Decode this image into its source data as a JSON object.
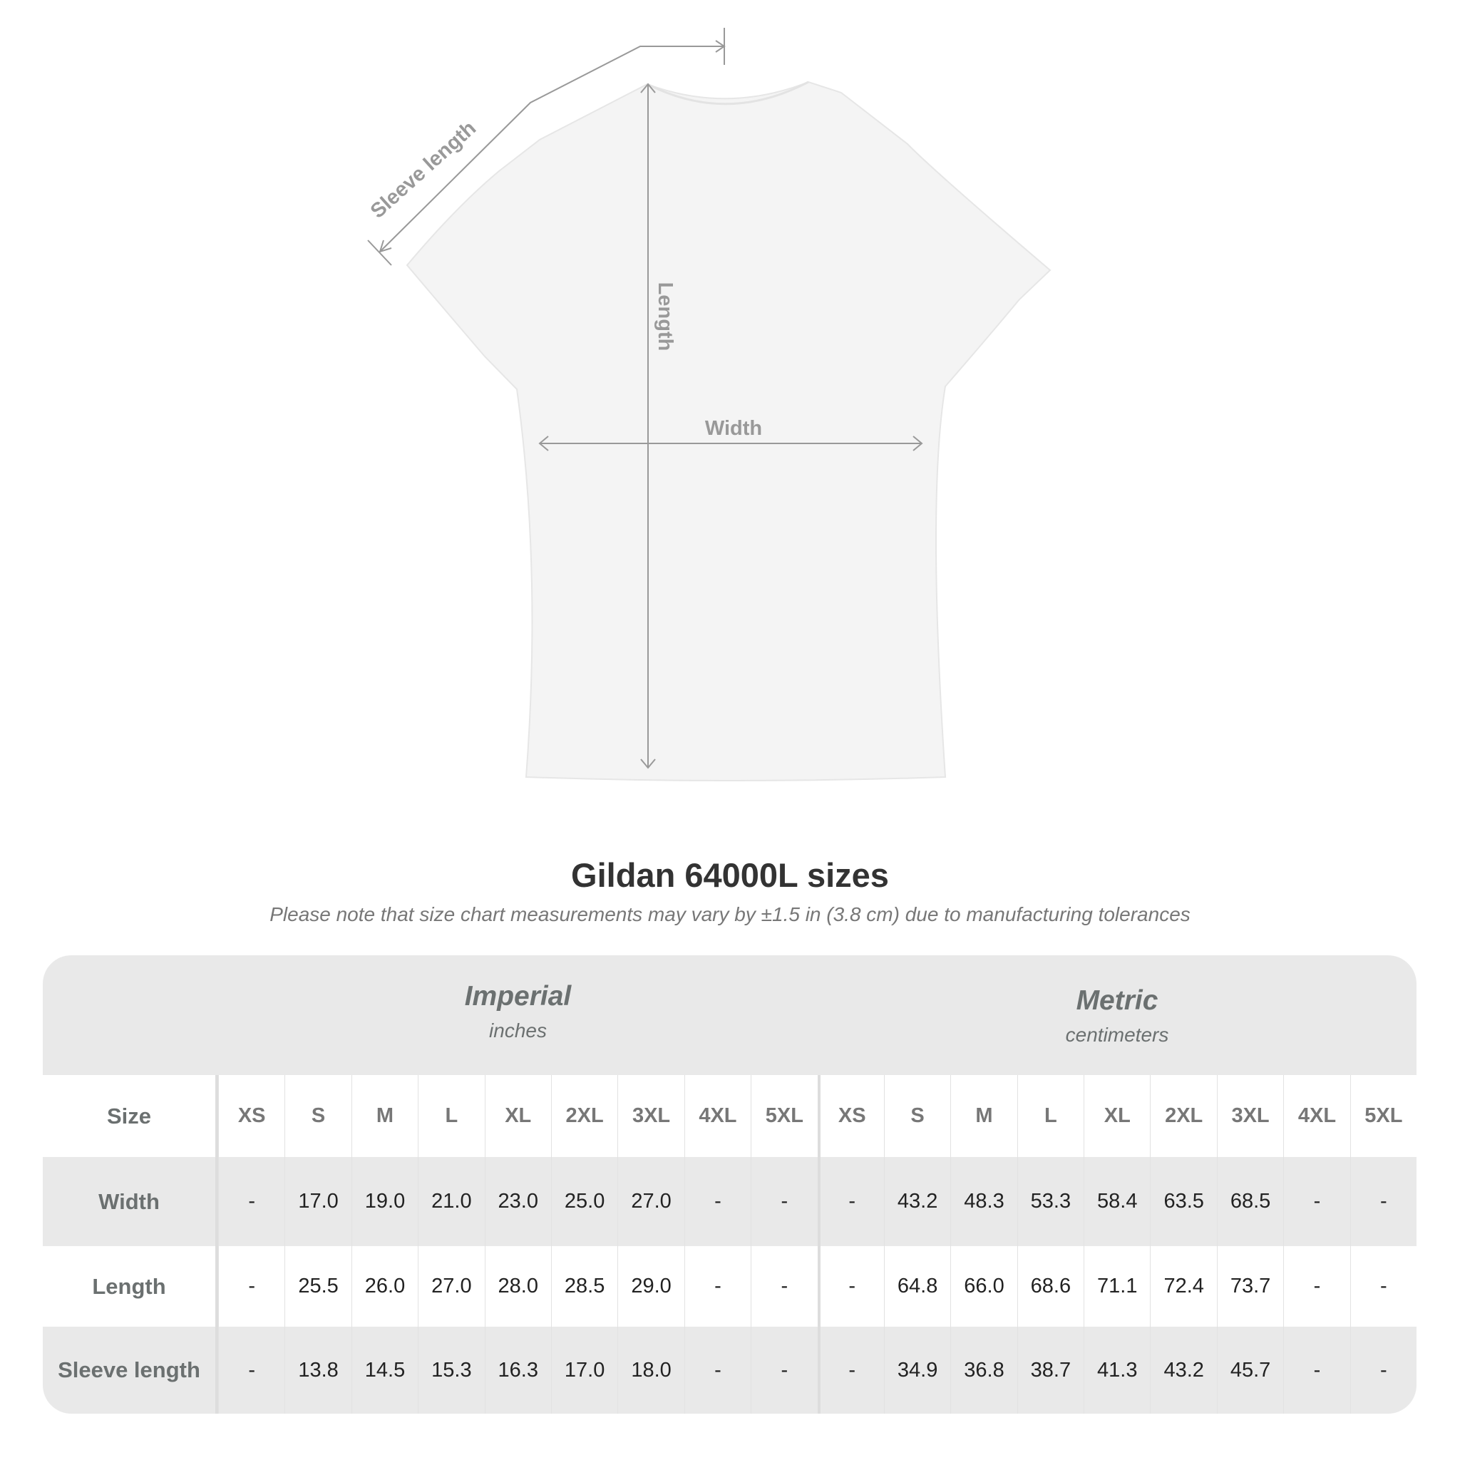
{
  "diagram": {
    "labels": {
      "sleeve": "Sleeve length",
      "length": "Length",
      "width": "Width"
    },
    "line_color": "#999999",
    "shirt_color": "#f4f4f4"
  },
  "title": "Gildan 64000L sizes",
  "subtitle": "Please note that size chart measurements may vary by ±1.5 in (3.8 cm) due to manufacturing tolerances",
  "table": {
    "imperial": {
      "label": "Imperial",
      "unit": "inches"
    },
    "metric": {
      "label": "Metric",
      "unit": "centimeters"
    },
    "size_label": "Size",
    "sizes": [
      "XS",
      "S",
      "M",
      "L",
      "XL",
      "2XL",
      "3XL",
      "4XL",
      "5XL"
    ],
    "rows": [
      {
        "label": "Width",
        "imperial": [
          "-",
          "17.0",
          "19.0",
          "21.0",
          "23.0",
          "25.0",
          "27.0",
          "-",
          "-"
        ],
        "metric": [
          "-",
          "43.2",
          "48.3",
          "53.3",
          "58.4",
          "63.5",
          "68.5",
          "-",
          "-"
        ]
      },
      {
        "label": "Length",
        "imperial": [
          "-",
          "25.5",
          "26.0",
          "27.0",
          "28.0",
          "28.5",
          "29.0",
          "-",
          "-"
        ],
        "metric": [
          "-",
          "64.8",
          "66.0",
          "68.6",
          "71.1",
          "72.4",
          "73.7",
          "-",
          "-"
        ]
      },
      {
        "label": "Sleeve length",
        "imperial": [
          "-",
          "13.8",
          "14.5",
          "15.3",
          "16.3",
          "17.0",
          "18.0",
          "-",
          "-"
        ],
        "metric": [
          "-",
          "34.9",
          "36.8",
          "38.7",
          "41.3",
          "43.2",
          "45.7",
          "-",
          "-"
        ]
      }
    ]
  }
}
